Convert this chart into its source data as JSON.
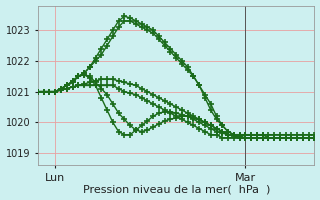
{
  "title": "Pression niveau de la mer(  hPa  )",
  "xlabel_lun": "Lun",
  "xlabel_mar": "Mar",
  "ylabel_ticks": [
    1019,
    1020,
    1021,
    1022,
    1023
  ],
  "ylim": [
    1018.6,
    1023.8
  ],
  "xlim": [
    0,
    48
  ],
  "background_color": "#cdf0f0",
  "grid_color": "#e8a0a0",
  "line_color": "#1a6b1a",
  "marker": "+",
  "markersize": 4,
  "linewidth": 1.0,
  "markeredgewidth": 1.2,
  "lun_x": 3,
  "mar_x": 36,
  "vline_x": 36,
  "series": [
    [
      0,
      1021.0,
      1,
      1021.0,
      2,
      1021.0,
      3,
      1021.0,
      4,
      1021.1,
      5,
      1021.2,
      6,
      1021.3,
      7,
      1021.5,
      8,
      1021.6,
      9,
      1021.8,
      10,
      1022.0,
      11,
      1022.2,
      12,
      1022.5,
      13,
      1022.8,
      14,
      1023.1,
      15,
      1023.3,
      16,
      1023.3,
      17,
      1023.2,
      18,
      1023.1,
      19,
      1023.0,
      20,
      1022.9,
      21,
      1022.7,
      22,
      1022.5,
      23,
      1022.3,
      24,
      1022.1,
      25,
      1021.9,
      26,
      1021.7,
      27,
      1021.5,
      28,
      1021.2,
      29,
      1020.9,
      30,
      1020.6,
      31,
      1020.2,
      32,
      1019.9,
      33,
      1019.7,
      34,
      1019.6,
      35,
      1019.6,
      36,
      1019.6,
      37,
      1019.6,
      38,
      1019.6,
      39,
      1019.6,
      40,
      1019.6,
      41,
      1019.6,
      42,
      1019.6,
      43,
      1019.6,
      44,
      1019.6,
      45,
      1019.6,
      46,
      1019.6,
      47,
      1019.6,
      48,
      1019.6
    ],
    [
      0,
      1021.0,
      1,
      1021.0,
      2,
      1021.0,
      3,
      1021.0,
      4,
      1021.1,
      5,
      1021.2,
      6,
      1021.3,
      7,
      1021.5,
      8,
      1021.6,
      9,
      1021.8,
      10,
      1022.1,
      11,
      1022.4,
      12,
      1022.7,
      13,
      1023.0,
      14,
      1023.3,
      15,
      1023.45,
      16,
      1023.4,
      17,
      1023.3,
      18,
      1023.2,
      19,
      1023.1,
      20,
      1023.0,
      21,
      1022.8,
      22,
      1022.6,
      23,
      1022.4,
      24,
      1022.2,
      25,
      1022.0,
      26,
      1021.8,
      27,
      1021.5,
      28,
      1021.2,
      29,
      1020.8,
      30,
      1020.4,
      31,
      1020.1,
      32,
      1019.9,
      33,
      1019.7,
      34,
      1019.6,
      35,
      1019.6,
      36,
      1019.6,
      37,
      1019.6,
      38,
      1019.6,
      39,
      1019.6,
      40,
      1019.5,
      41,
      1019.5,
      42,
      1019.5,
      43,
      1019.5,
      44,
      1019.5,
      45,
      1019.5,
      46,
      1019.5,
      47,
      1019.5,
      48,
      1019.5
    ],
    [
      0,
      1021.0,
      1,
      1021.0,
      2,
      1021.0,
      3,
      1021.0,
      4,
      1021.05,
      5,
      1021.1,
      6,
      1021.15,
      7,
      1021.2,
      8,
      1021.2,
      9,
      1021.2,
      10,
      1021.2,
      11,
      1021.2,
      12,
      1021.2,
      13,
      1021.2,
      14,
      1021.1,
      15,
      1021.0,
      16,
      1020.95,
      17,
      1020.9,
      18,
      1020.8,
      19,
      1020.7,
      20,
      1020.6,
      21,
      1020.5,
      22,
      1020.4,
      23,
      1020.3,
      24,
      1020.2,
      25,
      1020.1,
      26,
      1020.0,
      27,
      1019.9,
      28,
      1019.8,
      29,
      1019.7,
      30,
      1019.6,
      31,
      1019.6,
      32,
      1019.5,
      33,
      1019.5,
      34,
      1019.5,
      35,
      1019.5,
      36,
      1019.5,
      37,
      1019.5,
      38,
      1019.5,
      39,
      1019.5,
      40,
      1019.5,
      41,
      1019.5,
      42,
      1019.5,
      43,
      1019.5,
      44,
      1019.5,
      45,
      1019.5,
      46,
      1019.5,
      47,
      1019.5,
      48,
      1019.5
    ],
    [
      0,
      1021.0,
      1,
      1021.0,
      2,
      1021.0,
      3,
      1021.0,
      4,
      1021.05,
      5,
      1021.1,
      6,
      1021.15,
      7,
      1021.2,
      8,
      1021.25,
      9,
      1021.3,
      10,
      1021.35,
      11,
      1021.4,
      12,
      1021.4,
      13,
      1021.4,
      14,
      1021.35,
      15,
      1021.3,
      16,
      1021.25,
      17,
      1021.2,
      18,
      1021.1,
      19,
      1021.0,
      20,
      1020.9,
      21,
      1020.8,
      22,
      1020.7,
      23,
      1020.6,
      24,
      1020.5,
      25,
      1020.4,
      26,
      1020.3,
      27,
      1020.2,
      28,
      1020.1,
      29,
      1020.0,
      30,
      1019.9,
      31,
      1019.8,
      32,
      1019.7,
      33,
      1019.6,
      34,
      1019.6,
      35,
      1019.5,
      36,
      1019.5,
      37,
      1019.5,
      38,
      1019.5,
      39,
      1019.5,
      40,
      1019.5,
      41,
      1019.5,
      42,
      1019.5,
      43,
      1019.5,
      44,
      1019.5,
      45,
      1019.5,
      46,
      1019.5,
      47,
      1019.5,
      48,
      1019.5
    ],
    [
      0,
      1021.0,
      1,
      1021.0,
      2,
      1021.0,
      3,
      1021.0,
      4,
      1021.1,
      5,
      1021.2,
      6,
      1021.35,
      7,
      1021.5,
      8,
      1021.55,
      9,
      1021.5,
      10,
      1021.3,
      11,
      1021.1,
      12,
      1020.9,
      13,
      1020.6,
      14,
      1020.3,
      15,
      1020.1,
      16,
      1019.9,
      17,
      1019.75,
      18,
      1019.7,
      19,
      1019.75,
      20,
      1019.85,
      21,
      1019.95,
      22,
      1020.05,
      23,
      1020.1,
      24,
      1020.15,
      25,
      1020.2,
      26,
      1020.2,
      27,
      1020.15,
      28,
      1020.1,
      29,
      1020.0,
      30,
      1019.9,
      31,
      1019.8,
      32,
      1019.7,
      33,
      1019.6,
      34,
      1019.6,
      35,
      1019.55,
      36,
      1019.5,
      37,
      1019.5,
      38,
      1019.5,
      39,
      1019.5,
      40,
      1019.5,
      41,
      1019.5,
      42,
      1019.5,
      43,
      1019.5,
      44,
      1019.5,
      45,
      1019.5,
      46,
      1019.5,
      47,
      1019.5,
      48,
      1019.5
    ],
    [
      0,
      1021.0,
      1,
      1021.0,
      2,
      1021.0,
      3,
      1021.0,
      4,
      1021.1,
      5,
      1021.2,
      6,
      1021.35,
      7,
      1021.5,
      8,
      1021.55,
      9,
      1021.45,
      10,
      1021.2,
      11,
      1020.8,
      12,
      1020.4,
      13,
      1020.0,
      14,
      1019.7,
      15,
      1019.6,
      16,
      1019.6,
      17,
      1019.75,
      18,
      1019.9,
      19,
      1020.05,
      20,
      1020.2,
      21,
      1020.3,
      22,
      1020.35,
      23,
      1020.35,
      24,
      1020.3,
      25,
      1020.25,
      26,
      1020.2,
      27,
      1020.1,
      28,
      1020.0,
      29,
      1019.9,
      30,
      1019.8,
      31,
      1019.7,
      32,
      1019.65,
      33,
      1019.6,
      34,
      1019.55,
      35,
      1019.5,
      36,
      1019.5,
      37,
      1019.5,
      38,
      1019.5,
      39,
      1019.5,
      40,
      1019.5,
      41,
      1019.5,
      42,
      1019.5,
      43,
      1019.5,
      44,
      1019.5,
      45,
      1019.5,
      46,
      1019.5,
      47,
      1019.5,
      48,
      1019.5
    ]
  ]
}
